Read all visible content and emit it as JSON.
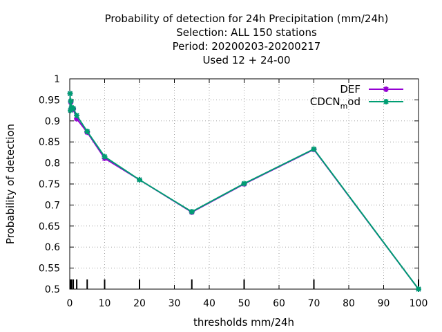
{
  "title_lines": [
    "Probability of detection  for 24h Precipitation (mm/24h)",
    "Selection: ALL    150 stations",
    "Period: 20200203-20200217",
    "Used  12 + 24-00"
  ],
  "chart_data": {
    "type": "line",
    "xlabel": "thresholds mm/24h",
    "ylabel": "Probability of detection",
    "xlim": [
      0,
      100
    ],
    "ylim": [
      0.5,
      1
    ],
    "xticks": [
      0,
      10,
      20,
      30,
      40,
      50,
      60,
      70,
      80,
      90,
      100
    ],
    "xtick_labels": [
      "0",
      "10",
      "20",
      "30",
      "40",
      "50",
      "60",
      "70",
      "80",
      "90",
      "100"
    ],
    "yticks": [
      0.5,
      0.55,
      0.6,
      0.65,
      0.7,
      0.75,
      0.8,
      0.85,
      0.9,
      0.95,
      1
    ],
    "ytick_labels": [
      "0.5",
      "0.55",
      "0.6",
      "0.65",
      "0.7",
      "0.75",
      "0.8",
      "0.85",
      "0.9",
      "0.95",
      "1"
    ],
    "grid": true,
    "legend_position": "top-right",
    "threshold_marks": [
      0.1,
      0.2,
      0.3,
      0.5,
      1,
      2,
      5,
      10,
      20,
      35,
      50,
      70,
      100
    ],
    "series": [
      {
        "name": "DEF",
        "color": "#9400d3",
        "marker": "star",
        "x": [
          0.1,
          0.2,
          0.3,
          0.5,
          1,
          2,
          5,
          10,
          20,
          35,
          50,
          70,
          100
        ],
        "y": [
          0.965,
          0.925,
          0.945,
          0.93,
          0.928,
          0.905,
          0.873,
          0.811,
          0.76,
          0.683,
          0.75,
          0.832,
          0.5
        ]
      },
      {
        "name_main": "CDCN",
        "name_sub": "m",
        "name_tail": "od",
        "color": "#009e73",
        "marker": "star",
        "x": [
          0.1,
          0.2,
          0.3,
          0.5,
          1,
          2,
          5,
          10,
          20,
          35,
          50,
          70,
          100
        ],
        "y": [
          0.965,
          0.925,
          0.947,
          0.932,
          0.93,
          0.913,
          0.875,
          0.815,
          0.76,
          0.684,
          0.751,
          0.833,
          0.5
        ]
      }
    ]
  }
}
